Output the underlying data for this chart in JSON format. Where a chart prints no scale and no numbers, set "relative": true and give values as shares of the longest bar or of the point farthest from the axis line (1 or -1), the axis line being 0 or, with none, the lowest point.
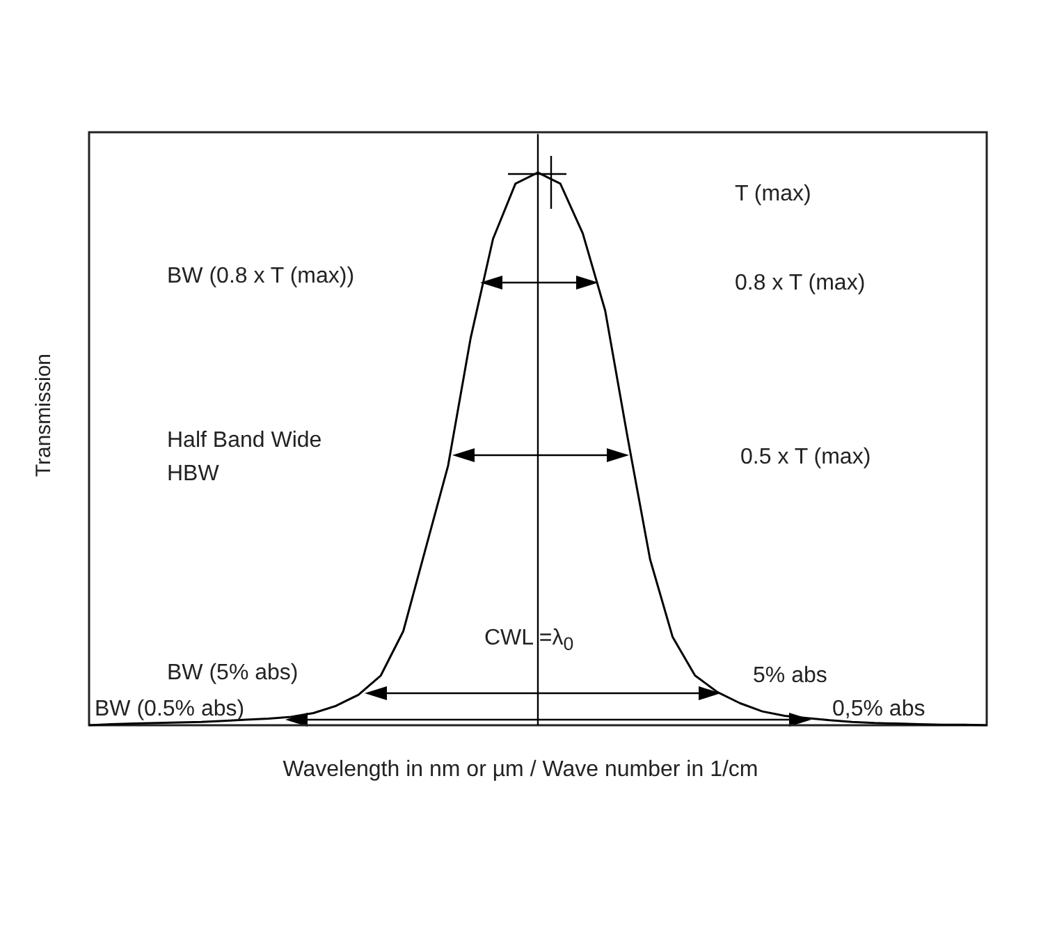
{
  "chart_data": {
    "type": "line",
    "relative": true,
    "xlabel": "Wavelength in nm or µm / Wave number in 1/cm",
    "ylabel": "Transmission",
    "categories": [
      null,
      null,
      null,
      null,
      null,
      null,
      null,
      null,
      null,
      null,
      null,
      null,
      null,
      null,
      null,
      null,
      null,
      null,
      null,
      null,
      null,
      null,
      null,
      null,
      null,
      null,
      null,
      null,
      null,
      null,
      null,
      null,
      null,
      null,
      null,
      null,
      null,
      null,
      null,
      null,
      null
    ],
    "series": [
      {
        "color": "#000000",
        "values": [
          0,
          0.002,
          0.003,
          0.004,
          0.005,
          0.006,
          0.008,
          0.01,
          0.012,
          0.015,
          0.022,
          0.035,
          0.055,
          0.09,
          0.17,
          0.32,
          0.47,
          0.7,
          0.88,
          0.98,
          1,
          0.98,
          0.89,
          0.75,
          0.52,
          0.3,
          0.16,
          0.09,
          0.06,
          0.04,
          0.025,
          0.017,
          0.013,
          0.009,
          0.006,
          0.004,
          0.003,
          0.002,
          0.001,
          0.001,
          0
        ]
      }
    ],
    "marker": "none",
    "grid": false,
    "annotations": [
      "T (max)",
      "BW (0.8 x T (max))",
      "0.8 x T (max)",
      "Half Band Wide\nHBW",
      "0.5 x T (max)",
      "CWL =λ$_{0}$",
      "BW (5% abs)",
      "5% abs",
      "BW (0.5% abs)",
      "0,5% abs"
    ]
  }
}
